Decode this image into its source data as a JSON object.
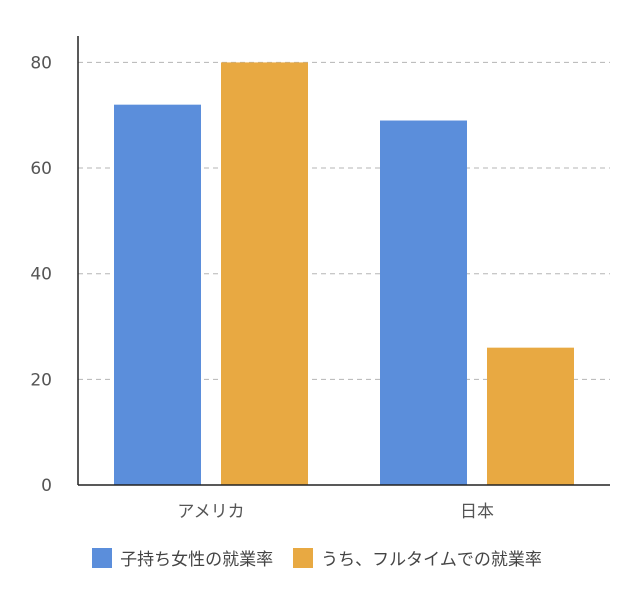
{
  "chart_data": {
    "type": "bar",
    "categories": [
      "アメリカ",
      "日本"
    ],
    "series": [
      {
        "name": "子持ち女性の就業率",
        "values": [
          72,
          69
        ],
        "color": "#5b8edb"
      },
      {
        "name": "うち、フルタイムでの就業率",
        "values": [
          80,
          26
        ],
        "color": "#e8a942"
      }
    ],
    "title": "",
    "xlabel": "",
    "ylabel": "",
    "ylim": [
      0,
      85
    ],
    "yticks": [
      0,
      20,
      40,
      60,
      80
    ],
    "grid": true,
    "legend_position": "bottom"
  }
}
